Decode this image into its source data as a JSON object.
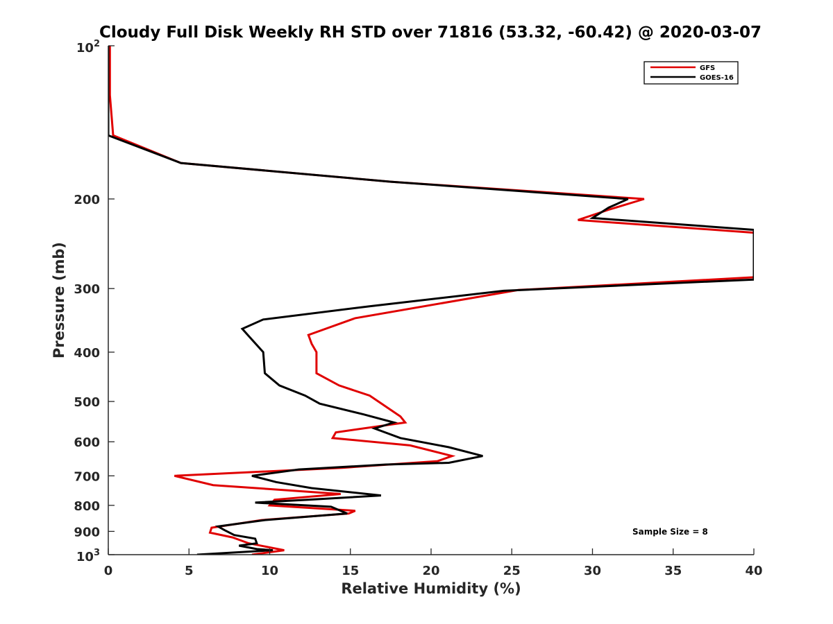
{
  "chart_data": {
    "type": "line",
    "title": "Cloudy Full Disk Weekly RH STD over 71816 (53.32, -60.42) @ 2020-03-07",
    "xlabel": "Relative Humidity (%)",
    "ylabel": "Pressure (mb)",
    "xlim": [
      0,
      40
    ],
    "ylim": [
      100,
      1000
    ],
    "yscale": "log",
    "yreversed": true,
    "grid": false,
    "legend_position": "top-right",
    "x_ticks": [
      0,
      5,
      10,
      15,
      20,
      25,
      30,
      35,
      40
    ],
    "x_tick_labels": [
      "0",
      "5",
      "10",
      "15",
      "20",
      "25",
      "30",
      "35",
      "40"
    ],
    "y_ticks": [
      {
        "value": 100,
        "base": "10",
        "exp": "2"
      },
      {
        "value": 200,
        "label": "200"
      },
      {
        "value": 300,
        "label": "300"
      },
      {
        "value": 400,
        "label": "400"
      },
      {
        "value": 500,
        "label": "500"
      },
      {
        "value": 600,
        "label": "600"
      },
      {
        "value": 700,
        "label": "700"
      },
      {
        "value": 800,
        "label": "800"
      },
      {
        "value": 900,
        "label": "900"
      },
      {
        "value": 1000,
        "base": "10",
        "exp": "3"
      }
    ],
    "series": [
      {
        "name": "GFS",
        "color": "#e00000",
        "points": [
          [
            0.1,
            100
          ],
          [
            0.1,
            125
          ],
          [
            0.3,
            150
          ],
          [
            4.5,
            170
          ],
          [
            17.5,
            185
          ],
          [
            33.2,
            200
          ],
          [
            31.0,
            210
          ],
          [
            29.1,
            220
          ],
          [
            40.0,
            233
          ],
          [
            40.0,
            285
          ],
          [
            25.4,
            302
          ],
          [
            15.3,
            343
          ],
          [
            12.4,
            370
          ],
          [
            12.6,
            385
          ],
          [
            12.9,
            400
          ],
          [
            12.9,
            440
          ],
          [
            14.3,
            465
          ],
          [
            16.2,
            487
          ],
          [
            18.1,
            535
          ],
          [
            18.4,
            550
          ],
          [
            14.1,
            575
          ],
          [
            13.9,
            590
          ],
          [
            18.7,
            610
          ],
          [
            21.3,
            640
          ],
          [
            20.4,
            655
          ],
          [
            14.5,
            675
          ],
          [
            4.1,
            700
          ],
          [
            6.5,
            730
          ],
          [
            14.4,
            760
          ],
          [
            10.3,
            780
          ],
          [
            10.0,
            800
          ],
          [
            15.3,
            820
          ],
          [
            14.9,
            830
          ],
          [
            9.5,
            855
          ],
          [
            6.4,
            885
          ],
          [
            6.3,
            905
          ],
          [
            7.7,
            925
          ],
          [
            8.7,
            950
          ],
          [
            10.9,
            980
          ],
          [
            8.9,
            1000
          ]
        ]
      },
      {
        "name": "GOES-16",
        "color": "#000000",
        "points": [
          [
            0.0,
            100
          ],
          [
            0.0,
            125
          ],
          [
            0.0,
            150
          ],
          [
            4.5,
            170
          ],
          [
            17.5,
            185
          ],
          [
            32.2,
            200
          ],
          [
            31.0,
            208
          ],
          [
            30.0,
            218
          ],
          [
            40.0,
            230
          ],
          [
            40.0,
            288
          ],
          [
            24.5,
            303
          ],
          [
            16.2,
            325
          ],
          [
            9.6,
            345
          ],
          [
            8.3,
            360
          ],
          [
            8.8,
            375
          ],
          [
            9.6,
            400
          ],
          [
            9.7,
            440
          ],
          [
            10.6,
            465
          ],
          [
            12.2,
            487
          ],
          [
            13.1,
            505
          ],
          [
            15.8,
            530
          ],
          [
            17.7,
            550
          ],
          [
            16.5,
            565
          ],
          [
            18.1,
            590
          ],
          [
            21.1,
            615
          ],
          [
            23.2,
            640
          ],
          [
            21.1,
            660
          ],
          [
            17.2,
            665
          ],
          [
            11.8,
            680
          ],
          [
            8.9,
            700
          ],
          [
            10.4,
            720
          ],
          [
            12.6,
            740
          ],
          [
            16.9,
            765
          ],
          [
            12.4,
            780
          ],
          [
            9.1,
            790
          ],
          [
            13.8,
            805
          ],
          [
            14.8,
            830
          ],
          [
            9.7,
            855
          ],
          [
            6.8,
            880
          ],
          [
            7.2,
            895
          ],
          [
            7.8,
            915
          ],
          [
            9.1,
            930
          ],
          [
            9.2,
            950
          ],
          [
            8.1,
            960
          ],
          [
            9.2,
            975
          ],
          [
            10.2,
            980
          ],
          [
            5.5,
            1000
          ]
        ]
      }
    ],
    "annotations": [
      {
        "text": "Sample Size = 8"
      }
    ]
  }
}
